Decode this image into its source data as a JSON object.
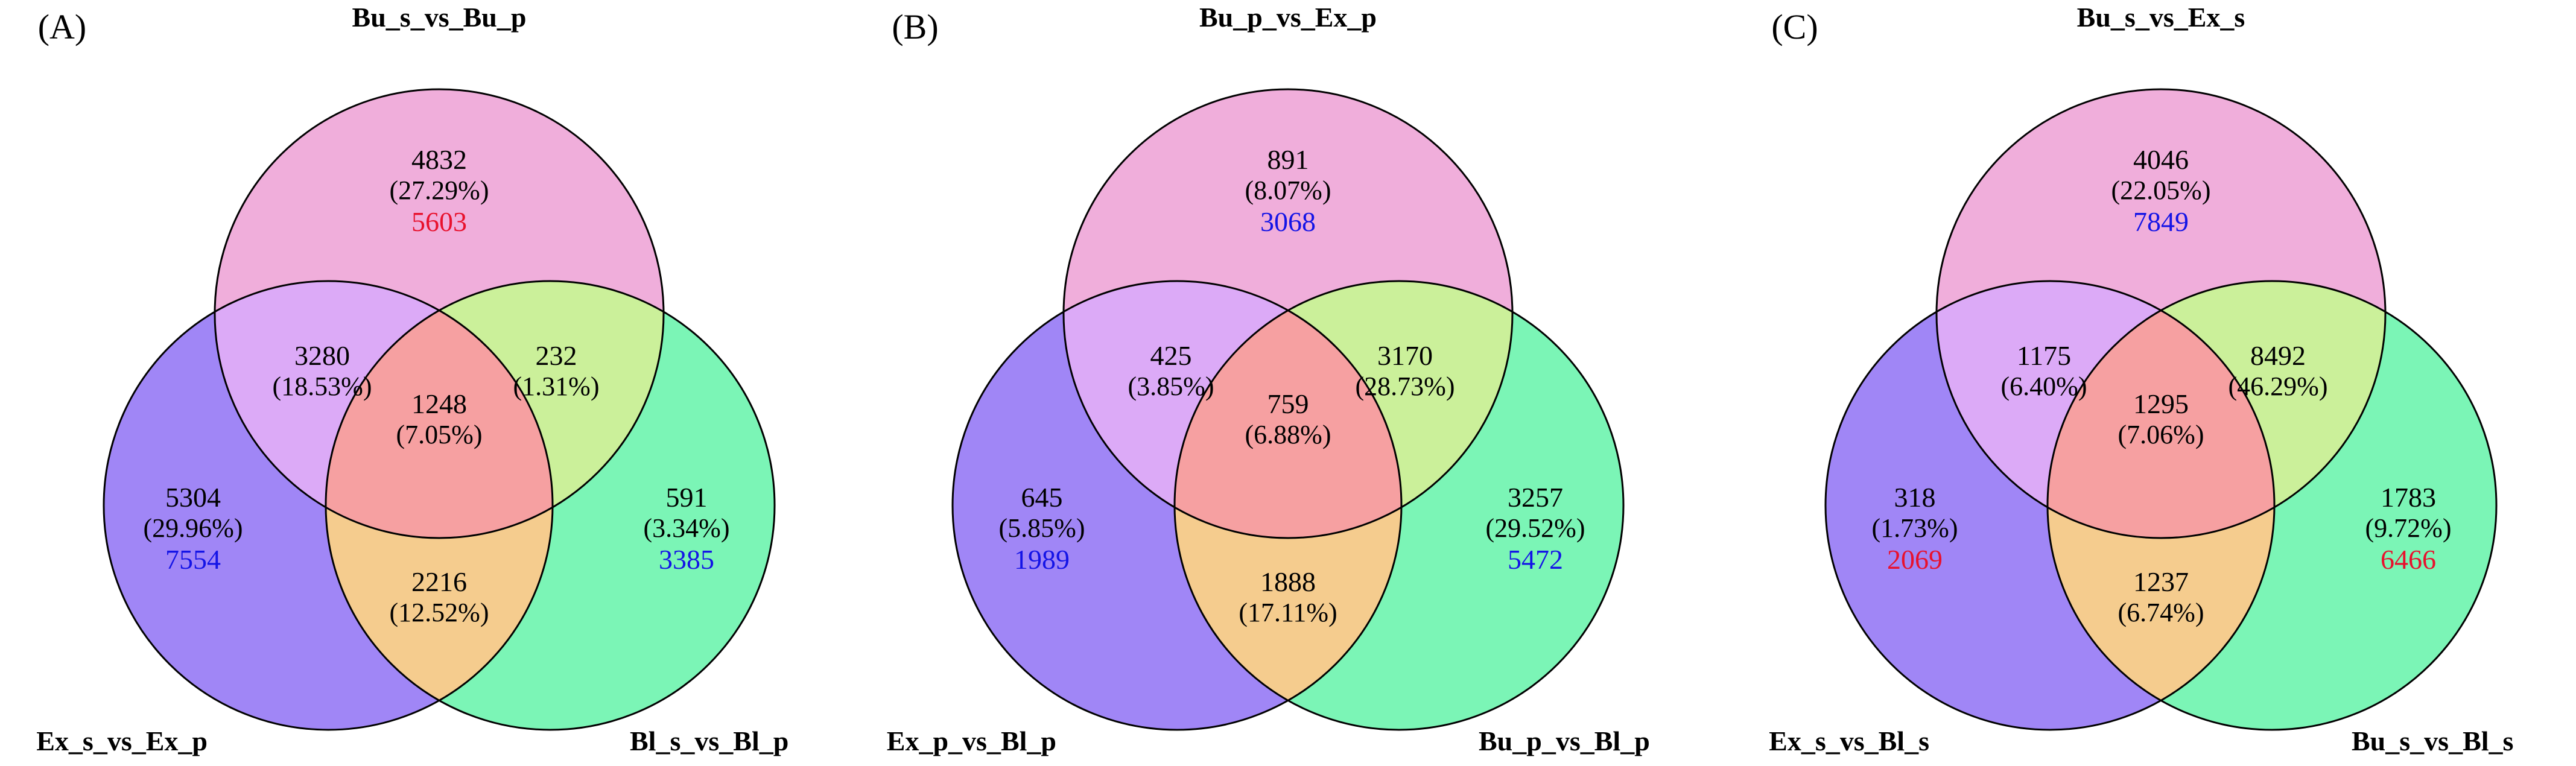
{
  "colors": {
    "top": "#F0AEDB",
    "left": "#A086F6",
    "right": "#7BF5B6",
    "top_left": "#DCAAF7",
    "top_right": "#CBF09A",
    "left_right": "#F5CC8E",
    "center": "#F6A0A1",
    "outline": "#000000",
    "red": "#E8112D",
    "blue": "#1414E6"
  },
  "panels": [
    {
      "label": "(A)",
      "sets": {
        "top": "Bu_s_vs_Bu_p",
        "left": "Ex_s_vs_Ex_p",
        "right": "Bl_s_vs_Bl_p"
      },
      "regions": {
        "top": {
          "count": "4832",
          "pct": "(27.29%)",
          "extra": "5603",
          "extra_color": "red"
        },
        "top_left": {
          "count": "3280",
          "pct": "(18.53%)"
        },
        "top_right": {
          "count": "232",
          "pct": "(1.31%)"
        },
        "center": {
          "count": "1248",
          "pct": "(7.05%)"
        },
        "left": {
          "count": "5304",
          "pct": "(29.96%)",
          "extra": "7554",
          "extra_color": "blue"
        },
        "right": {
          "count": "591",
          "pct": "(3.34%)",
          "extra": "3385",
          "extra_color": "blue"
        },
        "left_right": {
          "count": "2216",
          "pct": "(12.52%)"
        }
      }
    },
    {
      "label": "(B)",
      "sets": {
        "top": "Bu_p_vs_Ex_p",
        "left": "Ex_p_vs_Bl_p",
        "right": "Bu_p_vs_Bl_p"
      },
      "regions": {
        "top": {
          "count": "891",
          "pct": "(8.07%)",
          "extra": "3068",
          "extra_color": "blue"
        },
        "top_left": {
          "count": "425",
          "pct": "(3.85%)"
        },
        "top_right": {
          "count": "3170",
          "pct": "(28.73%)"
        },
        "center": {
          "count": "759",
          "pct": "(6.88%)"
        },
        "left": {
          "count": "645",
          "pct": "(5.85%)",
          "extra": "1989",
          "extra_color": "blue"
        },
        "right": {
          "count": "3257",
          "pct": "(29.52%)",
          "extra": "5472",
          "extra_color": "blue"
        },
        "left_right": {
          "count": "1888",
          "pct": "(17.11%)"
        }
      }
    },
    {
      "label": "(C)",
      "sets": {
        "top": "Bu_s_vs_Ex_s",
        "left": "Ex_s_vs_Bl_s",
        "right": "Bu_s_vs_Bl_s"
      },
      "regions": {
        "top": {
          "count": "4046",
          "pct": "(22.05%)",
          "extra": "7849",
          "extra_color": "blue"
        },
        "top_left": {
          "count": "1175",
          "pct": "(6.40%)"
        },
        "top_right": {
          "count": "8492",
          "pct": "(46.29%)"
        },
        "center": {
          "count": "1295",
          "pct": "(7.06%)"
        },
        "left": {
          "count": "318",
          "pct": "(1.73%)",
          "extra": "2069",
          "extra_color": "red"
        },
        "right": {
          "count": "1783",
          "pct": "(9.72%)",
          "extra": "6466",
          "extra_color": "red"
        },
        "left_right": {
          "count": "1237",
          "pct": "(6.74%)"
        }
      }
    }
  ]
}
